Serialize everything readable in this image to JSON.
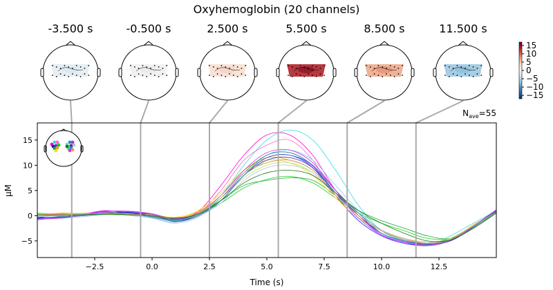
{
  "chart_data": {
    "type": "line",
    "title": "Oxyhemoglobin (20 channels)",
    "xlabel": "Time (s)",
    "ylabel": "µM",
    "xlim": [
      -5,
      15
    ],
    "ylim": [
      -8.3,
      18.4
    ],
    "xticks": [
      -2.5,
      0.0,
      2.5,
      5.0,
      7.5,
      10.0,
      12.5
    ],
    "xtick_labels": [
      "−2.5",
      "0.0",
      "2.5",
      "5.0",
      "7.5",
      "10.0",
      "12.5"
    ],
    "yticks": [
      -5,
      0,
      5,
      10,
      15
    ],
    "ytick_labels": [
      "−5",
      "0",
      "5",
      "10",
      "15"
    ],
    "grid": false,
    "nave": {
      "label": "N",
      "sub": "ave",
      "value": "=55"
    },
    "topomap_times": [
      -3.5,
      -0.5,
      2.5,
      5.5,
      8.5,
      11.5
    ],
    "topomap_labels": [
      "-3.500 s",
      "-0.500 s",
      "2.500 s",
      "5.500 s",
      "8.500 s",
      "11.500 s"
    ],
    "topomap_colors": [
      "#e6eef3",
      "#f1f1f1",
      "#f8e2d6",
      "#b83a3f",
      "#efb397",
      "#a7cde3"
    ],
    "topomap_core_colors": [
      "#dbe7ef",
      "#e9e9e9",
      "#f3d2c2",
      "#8c1527",
      "#e59378",
      "#8dbfdc"
    ],
    "colorbar": {
      "ticks": [
        15,
        10,
        5,
        0,
        -5,
        -10,
        -15
      ],
      "tick_labels": [
        "15",
        "10",
        "5",
        "0",
        "−5",
        "−10",
        "−15"
      ],
      "range": [
        -17,
        17
      ],
      "colormap": "RdBu_r"
    },
    "x": [
      -5,
      -4,
      -3,
      -2,
      -1,
      0,
      1,
      2,
      3,
      4,
      5,
      6,
      7,
      8,
      9,
      10,
      11,
      12,
      13,
      14,
      15
    ],
    "series": [
      {
        "color": "#ff00cc",
        "values": [
          0.3,
          0.2,
          0.4,
          1.0,
          0.5,
          0.3,
          -0.6,
          0.8,
          6,
          12,
          16,
          16,
          12,
          5,
          0,
          -3,
          -4.5,
          -5.5,
          -4.5,
          -2,
          1
        ]
      },
      {
        "color": "#33dddd",
        "values": [
          0.2,
          0.1,
          0.2,
          0.4,
          0.3,
          0,
          -0.8,
          0.3,
          4,
          10,
          15,
          17,
          15,
          9,
          2,
          -3,
          -5,
          -6,
          -4,
          -1.5,
          1
        ]
      },
      {
        "color": "#ff66cc",
        "values": [
          0.1,
          0.2,
          0.5,
          0.7,
          0.3,
          -0.2,
          -1,
          0.4,
          5,
          11,
          14,
          15,
          11,
          4,
          -1,
          -4,
          -5.5,
          -6,
          -5,
          -2.5,
          0.5
        ]
      },
      {
        "color": "#1a1aa0",
        "values": [
          -0.5,
          -0.2,
          0.3,
          0.5,
          0.7,
          0,
          -0.7,
          0.2,
          3,
          8,
          12,
          12.5,
          10,
          5,
          0,
          -3.5,
          -5,
          -5.5,
          -4.5,
          -2,
          0.8
        ]
      },
      {
        "color": "#2244ff",
        "values": [
          -0.8,
          -0.3,
          0.2,
          0.9,
          0.6,
          0.2,
          -1.2,
          0,
          3,
          8,
          11.5,
          12,
          9.5,
          4,
          -1,
          -4,
          -5.5,
          -5.8,
          -5,
          -2,
          1
        ]
      },
      {
        "color": "#22cc22",
        "values": [
          0.3,
          0.4,
          0.3,
          0.2,
          0.1,
          -0.1,
          -0.4,
          0.3,
          2.5,
          5.5,
          7.2,
          7.8,
          6.5,
          3.5,
          0.5,
          -1.5,
          -3,
          -4.5,
          -4.5,
          -2.5,
          0.8
        ]
      },
      {
        "color": "#11aa33",
        "values": [
          0.5,
          0.3,
          0.2,
          0.3,
          0.2,
          0,
          -0.6,
          0.5,
          3,
          6,
          7,
          7.5,
          7,
          4,
          1,
          -1,
          -2.5,
          -4,
          -4.5,
          -2,
          0.5
        ]
      },
      {
        "color": "#ff9900",
        "values": [
          0.2,
          0.5,
          0.4,
          0.3,
          0.2,
          0.1,
          -0.5,
          0.8,
          4,
          9,
          11.5,
          11,
          9,
          4,
          0,
          -3,
          -4.5,
          -5.5,
          -4.5,
          -2,
          0.6
        ]
      },
      {
        "color": "#eedd22",
        "values": [
          0.4,
          0.3,
          0.5,
          0.2,
          0.1,
          0.2,
          -0.3,
          1,
          4.5,
          9,
          11,
          10.5,
          8,
          3.5,
          -0.5,
          -3,
          -5,
          -5.8,
          -4.8,
          -1.8,
          0.5
        ]
      },
      {
        "color": "#88ccee",
        "values": [
          -0.3,
          -0.5,
          -0.2,
          0.2,
          0,
          -0.5,
          -1.5,
          -0.3,
          3,
          8,
          12,
          13,
          11,
          6,
          1,
          -3,
          -5,
          -6,
          -5,
          -2.5,
          0.5
        ]
      },
      {
        "color": "#229999",
        "values": [
          -0.2,
          -0.4,
          0,
          0.3,
          0.2,
          -0.3,
          -1,
          0.2,
          3.5,
          8.5,
          12,
          12.5,
          10,
          5,
          0.5,
          -3.5,
          -5,
          -5.5,
          -4.5,
          -2,
          1
        ]
      },
      {
        "color": "#9933ff",
        "values": [
          -0.6,
          -0.4,
          0.2,
          0.9,
          0.8,
          0.3,
          -0.8,
          0.3,
          3.5,
          8,
          11.5,
          12,
          9.8,
          4.5,
          -0.5,
          -3.8,
          -5.2,
          -5.8,
          -4.8,
          -2.2,
          0.8
        ]
      },
      {
        "color": "#aaee44",
        "values": [
          0.3,
          0.3,
          0.2,
          0.3,
          0.2,
          0,
          -0.6,
          0.4,
          3.5,
          7.5,
          10,
          10.5,
          8.5,
          4,
          0,
          -3,
          -4.5,
          -5.2,
          -4.5,
          -2,
          0.6
        ]
      },
      {
        "color": "#333388",
        "values": [
          -0.4,
          -0.2,
          0.1,
          0.6,
          0.5,
          0,
          -0.9,
          0,
          3,
          8,
          11,
          11.5,
          9.5,
          4.5,
          0,
          -3.5,
          -5,
          -5.6,
          -5,
          -2.3,
          0.9
        ]
      },
      {
        "color": "#bbbbdd",
        "values": [
          0,
          0,
          0.3,
          0.5,
          0.3,
          -0.4,
          -1.3,
          -0.2,
          2.5,
          7,
          9.5,
          10,
          8.5,
          4,
          0.5,
          -2.8,
          -4.5,
          -5.3,
          -4.8,
          -2.5,
          0.4
        ]
      },
      {
        "color": "#44ddaa",
        "values": [
          0.1,
          -0.1,
          0.1,
          0.3,
          0.2,
          -0.2,
          -0.9,
          0.2,
          3,
          8,
          10.5,
          11,
          9,
          4.5,
          0.5,
          -3,
          -4.8,
          -5.5,
          -4.8,
          -2.2,
          0.7
        ]
      },
      {
        "color": "#4477bb",
        "values": [
          -0.2,
          -0.3,
          0,
          0.4,
          0.3,
          -0.2,
          -1.1,
          0,
          3,
          8,
          11.5,
          12,
          10,
          5,
          0.5,
          -3.5,
          -5,
          -5.7,
          -4.8,
          -2.2,
          0.8
        ]
      },
      {
        "color": "#cc33ee",
        "values": [
          -0.7,
          -0.5,
          0.1,
          0.8,
          0.9,
          0.4,
          -0.6,
          0.5,
          4,
          9,
          12.5,
          13,
          10.5,
          5,
          0,
          -3.8,
          -5.3,
          -5.9,
          -4.9,
          -2,
          1.2
        ]
      },
      {
        "color": "#ff8877",
        "values": [
          0.2,
          0.3,
          0.4,
          0.4,
          0.3,
          0.1,
          -0.5,
          0.6,
          4,
          8.5,
          10.5,
          11,
          9,
          4,
          0,
          -3,
          -4.7,
          -5.5,
          -4.7,
          -2,
          0.7
        ]
      },
      {
        "color": "#117711",
        "values": [
          0.2,
          0.1,
          0.2,
          0.3,
          0.2,
          0,
          -0.5,
          0.3,
          3,
          6.5,
          8.5,
          9,
          8,
          4.5,
          1,
          -1.5,
          -3.5,
          -5,
          -4.8,
          -2.5,
          0.6
        ]
      }
    ]
  }
}
